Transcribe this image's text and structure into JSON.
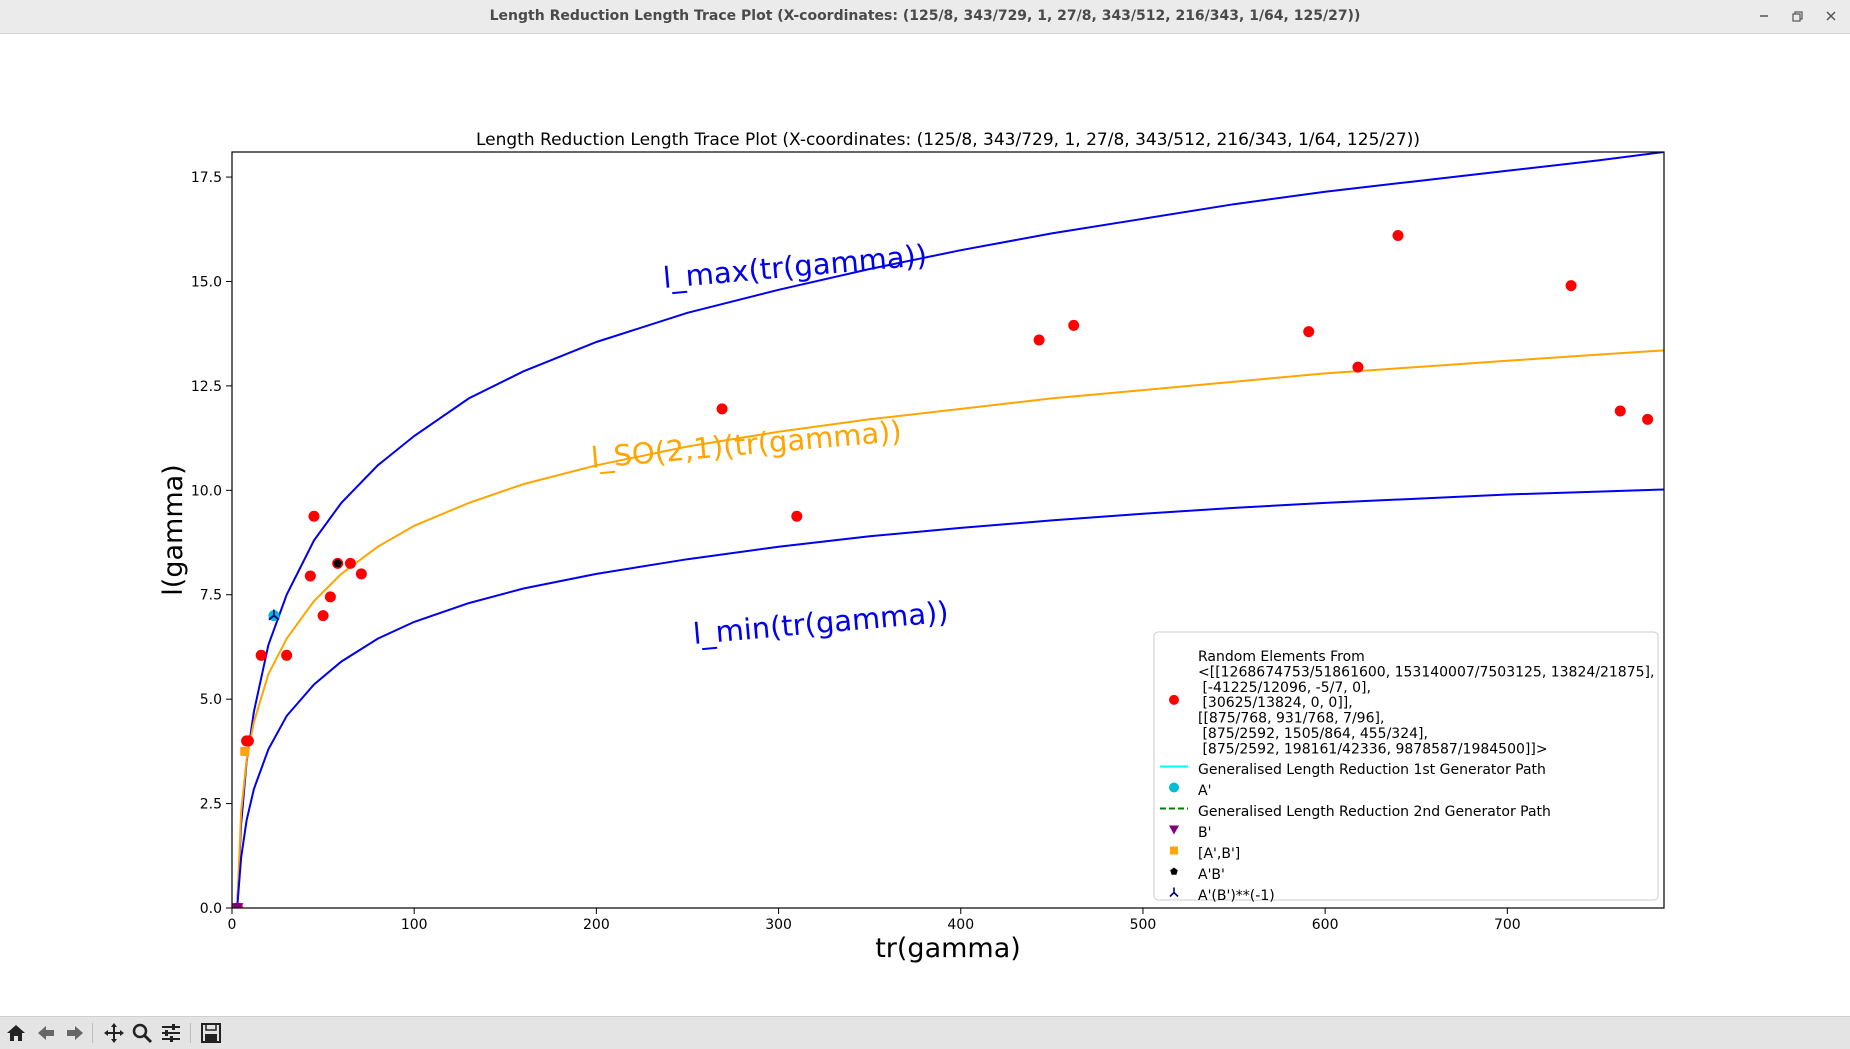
{
  "window": {
    "title": "Length Reduction Length Trace Plot (X-coordinates: (125/8, 343/729, 1, 27/8, 343/512, 216/343, 1/64, 125/27))",
    "buttons": [
      "minimize",
      "restore",
      "close"
    ]
  },
  "toolbar": {
    "icons": [
      "home-icon",
      "back-icon",
      "forward-icon",
      "pan-icon",
      "zoom-icon",
      "configure-icon",
      "save-icon"
    ]
  },
  "colors": {
    "bound_curve": "#0000ee",
    "so21_curve": "#ffa500",
    "random_points": "#ff0000",
    "a_prime": "#00bcd4",
    "b_prime": "#800080",
    "commutator": "#ffa500",
    "product": "#000000",
    "product_inverse": "#000080",
    "path1": "#00ffff",
    "path2": "#008000"
  },
  "chart_data": {
    "type": "scatter",
    "title": "Length Reduction Length Trace Plot (X-coordinates: (125/8, 343/729, 1, 27/8, 343/512, 216/343, 1/64, 125/27))",
    "xlabel": "tr(gamma)",
    "ylabel": "l(gamma)",
    "xlim": [
      0,
      786
    ],
    "ylim": [
      0,
      18.1
    ],
    "xticks": [
      0,
      100,
      200,
      300,
      400,
      500,
      600,
      700
    ],
    "yticks": [
      0.0,
      2.5,
      5.0,
      7.5,
      10.0,
      12.5,
      15.0,
      17.5
    ],
    "grid": false,
    "legend_position": "lower right",
    "curve_labels": {
      "max": "l_max(tr(gamma))",
      "so21": "l_SO(2,1)(tr(gamma))",
      "min": "l_min(tr(gamma))"
    },
    "curves": [
      {
        "key": "max",
        "x": [
          3,
          5,
          8,
          12,
          20,
          30,
          45,
          60,
          80,
          100,
          130,
          160,
          200,
          250,
          300,
          350,
          400,
          450,
          500,
          550,
          600,
          650,
          700,
          750,
          786
        ],
        "y": [
          0.2,
          2.0,
          3.5,
          4.7,
          6.3,
          7.5,
          8.8,
          9.7,
          10.6,
          11.3,
          12.2,
          12.85,
          13.55,
          14.25,
          14.8,
          15.3,
          15.75,
          16.15,
          16.5,
          16.85,
          17.15,
          17.4,
          17.65,
          17.9,
          18.1
        ]
      },
      {
        "key": "so21",
        "x": [
          3,
          5,
          8,
          12,
          20,
          30,
          45,
          60,
          80,
          100,
          130,
          160,
          200,
          250,
          300,
          350,
          400,
          450,
          500,
          550,
          600,
          650,
          700,
          750,
          786
        ],
        "y": [
          0.15,
          2.3,
          3.55,
          4.45,
          5.6,
          6.45,
          7.35,
          8.0,
          8.65,
          9.15,
          9.7,
          10.15,
          10.6,
          11.05,
          11.4,
          11.7,
          11.95,
          12.2,
          12.4,
          12.6,
          12.8,
          12.95,
          13.1,
          13.25,
          13.35
        ]
      },
      {
        "key": "min",
        "x": [
          3,
          5,
          8,
          12,
          20,
          30,
          45,
          60,
          80,
          100,
          130,
          160,
          200,
          250,
          300,
          350,
          400,
          450,
          500,
          550,
          600,
          650,
          700,
          750,
          786
        ],
        "y": [
          0.1,
          1.2,
          2.1,
          2.85,
          3.8,
          4.6,
          5.35,
          5.9,
          6.45,
          6.85,
          7.3,
          7.65,
          8.0,
          8.35,
          8.65,
          8.9,
          9.1,
          9.28,
          9.44,
          9.58,
          9.7,
          9.8,
          9.9,
          9.97,
          10.02
        ]
      }
    ],
    "series": [
      {
        "name": "Random Elements From\n<[[1268674753/51861600, 153140007/7503125, 13824/21875],\n [-41225/12096, -5/7, 0],\n [30625/13824, 0, 0]],\n[[875/768, 931/768, 7/96],\n [875/2592, 1505/864, 455/324],\n [875/2592, 198161/42336, 9878587/1984500]]>",
        "marker": "circle",
        "color_key": "random_points",
        "points": [
          [
            3,
            0.0
          ],
          [
            8,
            4.0
          ],
          [
            9,
            4.0
          ],
          [
            16,
            6.05
          ],
          [
            30,
            6.05
          ],
          [
            43,
            7.95
          ],
          [
            45,
            9.38
          ],
          [
            50,
            7.0
          ],
          [
            54,
            7.45
          ],
          [
            58,
            8.25
          ],
          [
            65,
            8.25
          ],
          [
            71,
            8.0
          ],
          [
            269,
            11.95
          ],
          [
            310,
            9.38
          ],
          [
            443,
            13.6
          ],
          [
            462,
            13.95
          ],
          [
            591,
            13.8
          ],
          [
            618,
            12.95
          ],
          [
            640,
            16.1
          ],
          [
            735,
            14.9
          ],
          [
            762,
            11.9
          ],
          [
            777,
            11.7
          ]
        ]
      },
      {
        "name": "Generalised Length Reduction 1st Generator Path",
        "marker": "line",
        "color_key": "path1",
        "points": []
      },
      {
        "name": "A'",
        "marker": "circle",
        "color_key": "a_prime",
        "points": [
          [
            23,
            7.0
          ]
        ]
      },
      {
        "name": "Generalised Length Reduction 2nd Generator Path",
        "marker": "dashed",
        "color_key": "path2",
        "points": []
      },
      {
        "name": "B'",
        "marker": "triangle-down",
        "color_key": "b_prime",
        "points": [
          [
            3,
            0.02
          ]
        ]
      },
      {
        "name": "[A',B']",
        "marker": "square",
        "color_key": "commutator",
        "points": [
          [
            7,
            3.75
          ]
        ]
      },
      {
        "name": "A'B'",
        "marker": "pentagon",
        "color_key": "product",
        "points": [
          [
            58,
            8.25
          ]
        ]
      },
      {
        "name": "A'(B')**(-1)",
        "marker": "tri-up",
        "color_key": "product_inverse",
        "points": [
          [
            23,
            7.0
          ]
        ]
      }
    ]
  }
}
